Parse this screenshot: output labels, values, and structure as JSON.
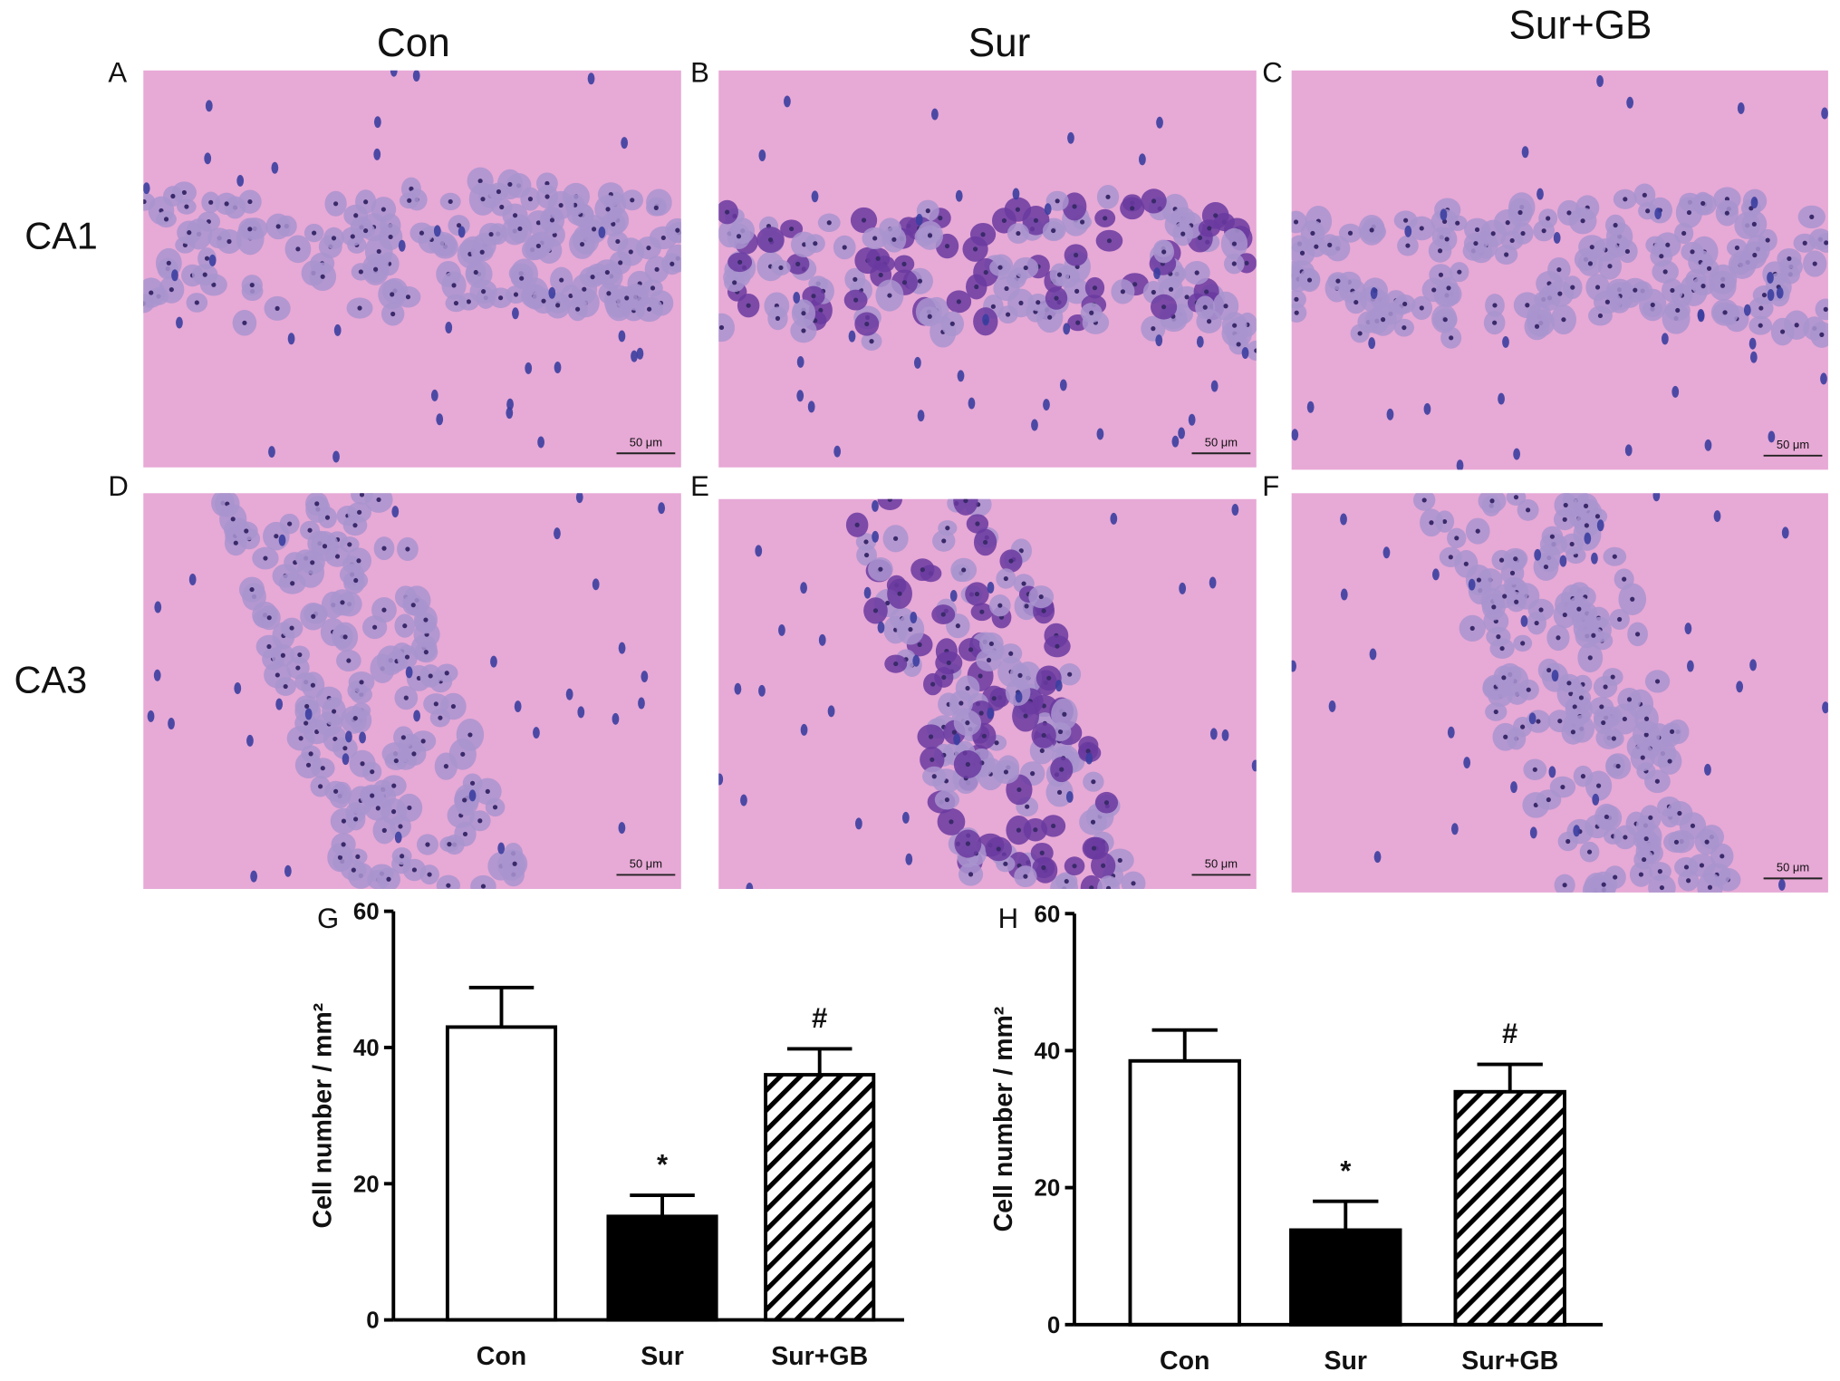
{
  "figure": {
    "columns": [
      "Con",
      "Sur",
      "Sur+GB"
    ],
    "rows": [
      "CA1",
      "CA3"
    ],
    "panels": [
      "A",
      "B",
      "C",
      "D",
      "E",
      "F"
    ],
    "scale_bar": "50 μm"
  },
  "chart_data": [
    {
      "type": "bar",
      "panel": "G",
      "y_label": "Cell number / mm²",
      "categories": [
        "Con",
        "Sur",
        "Sur+GB"
      ],
      "values": [
        43,
        15.2,
        36
      ],
      "errors": [
        5.8,
        3.1,
        3.8
      ],
      "fills": [
        "#ffffff",
        "#000000",
        "#ffffff"
      ],
      "hatched": [
        false,
        false,
        true
      ],
      "annotations": [
        null,
        "*",
        "#"
      ],
      "ylim": [
        0,
        60
      ],
      "yticks": [
        0,
        20,
        40,
        60
      ]
    },
    {
      "type": "bar",
      "panel": "H",
      "y_label": "Cell number / mm²",
      "categories": [
        "Con",
        "Sur",
        "Sur+GB"
      ],
      "values": [
        38.5,
        13.8,
        34
      ],
      "errors": [
        4.5,
        4.2,
        4
      ],
      "fills": [
        "#ffffff",
        "#000000",
        "#ffffff"
      ],
      "hatched": [
        false,
        false,
        true
      ],
      "annotations": [
        null,
        "*",
        "#"
      ],
      "ylim": [
        0,
        60
      ],
      "yticks": [
        0,
        20,
        40,
        60
      ]
    }
  ]
}
